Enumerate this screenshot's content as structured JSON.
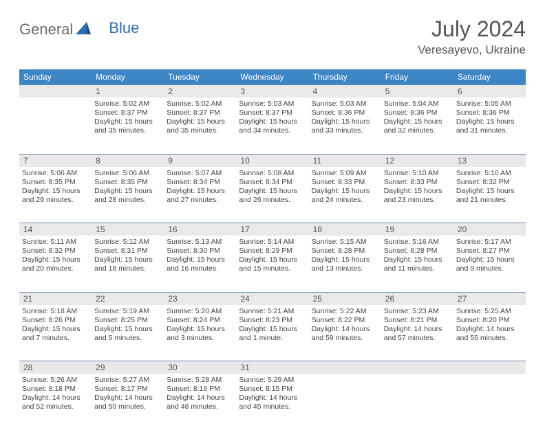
{
  "logo": {
    "part1": "General",
    "part2": "Blue"
  },
  "title": "July 2024",
  "location": "Veresayevo, Ukraine",
  "colors": {
    "header_bg": "#3d86c6",
    "header_text": "#ffffff",
    "daynum_bg": "#e9e9e9",
    "row_border": "#6a8bb0",
    "logo_gray": "#6b6b6b",
    "logo_blue": "#2a6db0",
    "text": "#444444",
    "bg": "#ffffff"
  },
  "day_headers": [
    "Sunday",
    "Monday",
    "Tuesday",
    "Wednesday",
    "Thursday",
    "Friday",
    "Saturday"
  ],
  "weeks": [
    {
      "nums": [
        "",
        "1",
        "2",
        "3",
        "4",
        "5",
        "6"
      ],
      "days": [
        null,
        {
          "sunrise": "Sunrise: 5:02 AM",
          "sunset": "Sunset: 8:37 PM",
          "daylight": "Daylight: 15 hours and 35 minutes."
        },
        {
          "sunrise": "Sunrise: 5:02 AM",
          "sunset": "Sunset: 8:37 PM",
          "daylight": "Daylight: 15 hours and 35 minutes."
        },
        {
          "sunrise": "Sunrise: 5:03 AM",
          "sunset": "Sunset: 8:37 PM",
          "daylight": "Daylight: 15 hours and 34 minutes."
        },
        {
          "sunrise": "Sunrise: 5:03 AM",
          "sunset": "Sunset: 8:36 PM",
          "daylight": "Daylight: 15 hours and 33 minutes."
        },
        {
          "sunrise": "Sunrise: 5:04 AM",
          "sunset": "Sunset: 8:36 PM",
          "daylight": "Daylight: 15 hours and 32 minutes."
        },
        {
          "sunrise": "Sunrise: 5:05 AM",
          "sunset": "Sunset: 8:36 PM",
          "daylight": "Daylight: 15 hours and 31 minutes."
        }
      ]
    },
    {
      "nums": [
        "7",
        "8",
        "9",
        "10",
        "11",
        "12",
        "13"
      ],
      "days": [
        {
          "sunrise": "Sunrise: 5:06 AM",
          "sunset": "Sunset: 8:35 PM",
          "daylight": "Daylight: 15 hours and 29 minutes."
        },
        {
          "sunrise": "Sunrise: 5:06 AM",
          "sunset": "Sunset: 8:35 PM",
          "daylight": "Daylight: 15 hours and 28 minutes."
        },
        {
          "sunrise": "Sunrise: 5:07 AM",
          "sunset": "Sunset: 8:34 PM",
          "daylight": "Daylight: 15 hours and 27 minutes."
        },
        {
          "sunrise": "Sunrise: 5:08 AM",
          "sunset": "Sunset: 8:34 PM",
          "daylight": "Daylight: 15 hours and 26 minutes."
        },
        {
          "sunrise": "Sunrise: 5:09 AM",
          "sunset": "Sunset: 8:33 PM",
          "daylight": "Daylight: 15 hours and 24 minutes."
        },
        {
          "sunrise": "Sunrise: 5:10 AM",
          "sunset": "Sunset: 8:33 PM",
          "daylight": "Daylight: 15 hours and 23 minutes."
        },
        {
          "sunrise": "Sunrise: 5:10 AM",
          "sunset": "Sunset: 8:32 PM",
          "daylight": "Daylight: 15 hours and 21 minutes."
        }
      ]
    },
    {
      "nums": [
        "14",
        "15",
        "16",
        "17",
        "18",
        "19",
        "20"
      ],
      "days": [
        {
          "sunrise": "Sunrise: 5:11 AM",
          "sunset": "Sunset: 8:32 PM",
          "daylight": "Daylight: 15 hours and 20 minutes."
        },
        {
          "sunrise": "Sunrise: 5:12 AM",
          "sunset": "Sunset: 8:31 PM",
          "daylight": "Daylight: 15 hours and 18 minutes."
        },
        {
          "sunrise": "Sunrise: 5:13 AM",
          "sunset": "Sunset: 8:30 PM",
          "daylight": "Daylight: 15 hours and 16 minutes."
        },
        {
          "sunrise": "Sunrise: 5:14 AM",
          "sunset": "Sunset: 8:29 PM",
          "daylight": "Daylight: 15 hours and 15 minutes."
        },
        {
          "sunrise": "Sunrise: 5:15 AM",
          "sunset": "Sunset: 8:28 PM",
          "daylight": "Daylight: 15 hours and 13 minutes."
        },
        {
          "sunrise": "Sunrise: 5:16 AM",
          "sunset": "Sunset: 8:28 PM",
          "daylight": "Daylight: 15 hours and 11 minutes."
        },
        {
          "sunrise": "Sunrise: 5:17 AM",
          "sunset": "Sunset: 8:27 PM",
          "daylight": "Daylight: 15 hours and 9 minutes."
        }
      ]
    },
    {
      "nums": [
        "21",
        "22",
        "23",
        "24",
        "25",
        "26",
        "27"
      ],
      "days": [
        {
          "sunrise": "Sunrise: 5:18 AM",
          "sunset": "Sunset: 8:26 PM",
          "daylight": "Daylight: 15 hours and 7 minutes."
        },
        {
          "sunrise": "Sunrise: 5:19 AM",
          "sunset": "Sunset: 8:25 PM",
          "daylight": "Daylight: 15 hours and 5 minutes."
        },
        {
          "sunrise": "Sunrise: 5:20 AM",
          "sunset": "Sunset: 8:24 PM",
          "daylight": "Daylight: 15 hours and 3 minutes."
        },
        {
          "sunrise": "Sunrise: 5:21 AM",
          "sunset": "Sunset: 8:23 PM",
          "daylight": "Daylight: 15 hours and 1 minute."
        },
        {
          "sunrise": "Sunrise: 5:22 AM",
          "sunset": "Sunset: 8:22 PM",
          "daylight": "Daylight: 14 hours and 59 minutes."
        },
        {
          "sunrise": "Sunrise: 5:23 AM",
          "sunset": "Sunset: 8:21 PM",
          "daylight": "Daylight: 14 hours and 57 minutes."
        },
        {
          "sunrise": "Sunrise: 5:25 AM",
          "sunset": "Sunset: 8:20 PM",
          "daylight": "Daylight: 14 hours and 55 minutes."
        }
      ]
    },
    {
      "nums": [
        "28",
        "29",
        "30",
        "31",
        "",
        "",
        ""
      ],
      "days": [
        {
          "sunrise": "Sunrise: 5:26 AM",
          "sunset": "Sunset: 8:18 PM",
          "daylight": "Daylight: 14 hours and 52 minutes."
        },
        {
          "sunrise": "Sunrise: 5:27 AM",
          "sunset": "Sunset: 8:17 PM",
          "daylight": "Daylight: 14 hours and 50 minutes."
        },
        {
          "sunrise": "Sunrise: 5:28 AM",
          "sunset": "Sunset: 8:16 PM",
          "daylight": "Daylight: 14 hours and 48 minutes."
        },
        {
          "sunrise": "Sunrise: 5:29 AM",
          "sunset": "Sunset: 8:15 PM",
          "daylight": "Daylight: 14 hours and 45 minutes."
        },
        null,
        null,
        null
      ]
    }
  ]
}
